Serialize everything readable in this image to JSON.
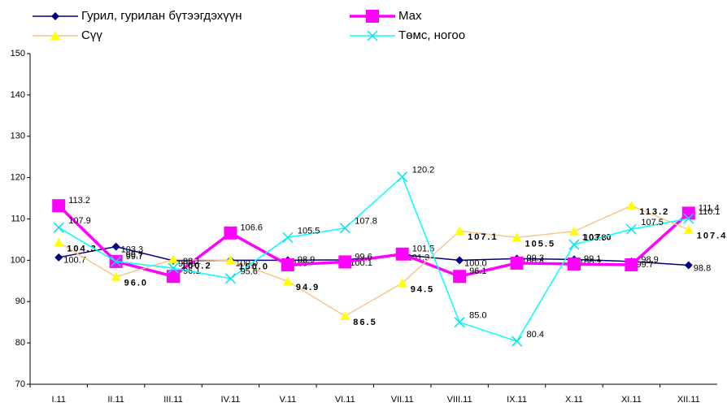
{
  "chart_data": {
    "type": "line",
    "categories": [
      "I.11",
      "II.11",
      "III.11",
      "IV.11",
      "V.11",
      "VI.11",
      "VII.11",
      "VIII.11",
      "IX.11",
      "X.11",
      "XI.11",
      "XII.11"
    ],
    "ylim": [
      70,
      150
    ],
    "yticks": [
      70,
      80,
      90,
      100,
      110,
      120,
      130,
      140,
      150
    ],
    "legend": "top",
    "series": [
      {
        "name": "Гурил, гурилан бүтээгдэхүүн",
        "color": "#000080",
        "marker": "diamond",
        "marker_color": "#000080",
        "values": [
          100.7,
          103.3,
          99.9,
          100.0,
          100.0,
          100.1,
          101.3,
          100.0,
          100.4,
          100.2,
          99.7,
          98.8
        ],
        "value_labels": [
          "100.7",
          "103.3",
          "99.9",
          "100.0",
          "100",
          "100.1",
          "101.3",
          "100.0",
          "100.4",
          "100.2",
          "99.7",
          "98.8"
        ]
      },
      {
        "name": "Мах",
        "color": "#ff00ff",
        "marker": "square",
        "marker_color": "#ff00ff",
        "values": [
          113.2,
          99.7,
          96.1,
          106.6,
          98.9,
          99.6,
          101.5,
          96.1,
          99.3,
          99.1,
          98.9,
          111.4
        ],
        "value_labels": [
          "113.2",
          "99.7",
          "96.1",
          "106.6",
          "98.9",
          "99.6",
          "101.5",
          "96.1",
          "99.3",
          "99.1",
          "98.9",
          "111.4"
        ]
      },
      {
        "name": "Сүү",
        "color": "#f8c68c",
        "marker": "triangle",
        "marker_color": "#ffff00",
        "values": [
          104.3,
          96.0,
          100.2,
          100.0,
          94.9,
          86.5,
          94.5,
          107.1,
          105.5,
          107.0,
          113.2,
          107.4
        ],
        "value_labels": [
          "104.3",
          "96.0",
          "100.2",
          "100.0",
          "94.9",
          "86.5",
          "94.5",
          "107.1",
          "105.5",
          "107.0",
          "113.2",
          "107.4"
        ]
      },
      {
        "name": "Төмс, ногоо",
        "color": "#00ffff",
        "marker": "x",
        "marker_color": "#00e5ee",
        "values": [
          107.9,
          99.7,
          98.1,
          95.6,
          105.5,
          107.8,
          120.2,
          85.0,
          80.4,
          103.8,
          107.5,
          110.1
        ],
        "value_labels": [
          "107.9",
          "99.7",
          "98.1",
          "95.6",
          "105.5",
          "107.8",
          "120.2",
          "85.0",
          "80.4",
          "103.8",
          "107.5",
          "110.1"
        ]
      }
    ]
  }
}
